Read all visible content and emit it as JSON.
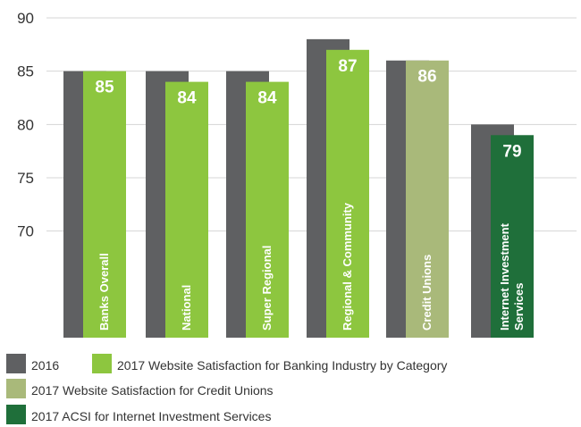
{
  "chart_data": {
    "type": "bar",
    "ylim": [
      60,
      90
    ],
    "yticks": [
      70,
      75,
      80,
      85,
      90
    ],
    "grid": true,
    "legend_position": "bottom-left",
    "categories": [
      [
        "Banks Overall"
      ],
      [
        "National"
      ],
      [
        "Super Regional"
      ],
      [
        "Regional & Community"
      ],
      [
        "Credit Unions"
      ],
      [
        "Internet Investment",
        "Services"
      ]
    ],
    "series": [
      {
        "name": "2016",
        "color": "#5f6062",
        "values": [
          85,
          85,
          85,
          88,
          86,
          80
        ]
      },
      {
        "name": "2017",
        "values": [
          85,
          84,
          84,
          87,
          86,
          79
        ],
        "labels": [
          "85",
          "84",
          "84",
          "87",
          "86",
          "79"
        ],
        "colors": [
          "#8dc63f",
          "#8dc63f",
          "#8dc63f",
          "#8dc63f",
          "#a9b97a",
          "#1f6f3a"
        ]
      }
    ],
    "legend": [
      {
        "label": "2016",
        "color": "#5f6062"
      },
      {
        "label": "2017 Website Satisfaction for Banking Industry by Category",
        "color": "#8dc63f"
      },
      {
        "label": "2017 Website Satisfaction for Credit Unions",
        "color": "#a9b97a"
      },
      {
        "label": "2017 ACSI for Internet Investment Services",
        "color": "#1f6f3a"
      }
    ]
  }
}
